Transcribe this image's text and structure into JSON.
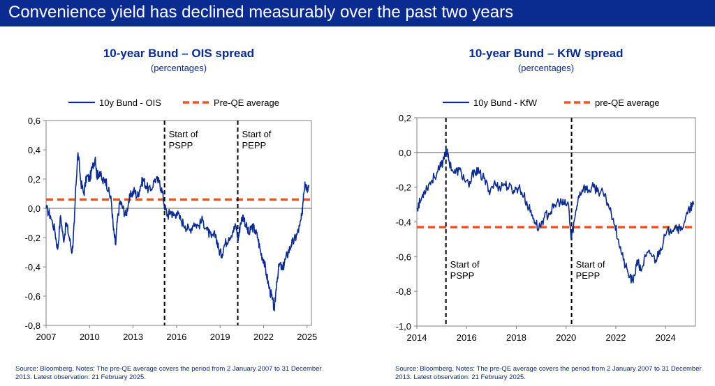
{
  "banner": {
    "title": "Convenience yield has declined measurably over the past two years",
    "background": "#0a2b8f",
    "text_color": "#ffffff"
  },
  "colors": {
    "series": "#0a2b8f",
    "average": "#f0551e",
    "event_line": "#000000",
    "titles": "#0a2b8f",
    "text": "#000000"
  },
  "chart_data": [
    {
      "type": "line",
      "title": "10-year Bund – OIS spread",
      "subtitle": "(percentages)",
      "xlabel": "",
      "ylabel": "",
      "xlim": [
        2007,
        2025.3
      ],
      "ylim": [
        -0.8,
        0.6
      ],
      "x_ticks": [
        2007,
        2010,
        2013,
        2016,
        2019,
        2022,
        2025
      ],
      "y_ticks": [
        -0.8,
        -0.6,
        -0.4,
        -0.2,
        0.0,
        0.2,
        0.4,
        0.6
      ],
      "y_tick_labels": [
        "-0,8",
        "-0,6",
        "-0,4",
        "-0,2",
        "0,0",
        "0,2",
        "0,4",
        "0,6"
      ],
      "grid": false,
      "legend_position": "top",
      "series": [
        {
          "name": "10y Bund - OIS",
          "style": "solid",
          "points": [
            [
              2007.0,
              0.0
            ],
            [
              2007.3,
              -0.05
            ],
            [
              2007.6,
              -0.15
            ],
            [
              2007.8,
              -0.28
            ],
            [
              2008.0,
              -0.05
            ],
            [
              2008.2,
              -0.22
            ],
            [
              2008.4,
              -0.1
            ],
            [
              2008.6,
              -0.2
            ],
            [
              2008.8,
              -0.3
            ],
            [
              2008.95,
              -0.1
            ],
            [
              2009.05,
              0.15
            ],
            [
              2009.2,
              0.38
            ],
            [
              2009.4,
              0.18
            ],
            [
              2009.6,
              0.1
            ],
            [
              2009.8,
              0.22
            ],
            [
              2010.0,
              0.2
            ],
            [
              2010.2,
              0.28
            ],
            [
              2010.4,
              0.35
            ],
            [
              2010.5,
              0.22
            ],
            [
              2010.7,
              0.25
            ],
            [
              2010.9,
              0.18
            ],
            [
              2011.1,
              0.2
            ],
            [
              2011.3,
              0.12
            ],
            [
              2011.5,
              0.05
            ],
            [
              2011.65,
              -0.15
            ],
            [
              2011.8,
              -0.25
            ],
            [
              2011.9,
              -0.1
            ],
            [
              2012.1,
              0.05
            ],
            [
              2012.3,
              0.0
            ],
            [
              2012.5,
              -0.05
            ],
            [
              2012.7,
              0.05
            ],
            [
              2012.9,
              0.1
            ],
            [
              2013.1,
              0.12
            ],
            [
              2013.3,
              0.08
            ],
            [
              2013.5,
              0.15
            ],
            [
              2013.7,
              0.2
            ],
            [
              2013.9,
              0.15
            ],
            [
              2014.2,
              0.12
            ],
            [
              2014.5,
              0.2
            ],
            [
              2014.8,
              0.18
            ],
            [
              2015.0,
              0.12
            ],
            [
              2015.2,
              0.0
            ],
            [
              2015.4,
              -0.05
            ],
            [
              2015.6,
              -0.02
            ],
            [
              2015.8,
              -0.05
            ],
            [
              2016.0,
              -0.03
            ],
            [
              2016.3,
              -0.08
            ],
            [
              2016.6,
              -0.12
            ],
            [
              2016.9,
              -0.15
            ],
            [
              2017.2,
              -0.1
            ],
            [
              2017.5,
              -0.12
            ],
            [
              2017.8,
              -0.08
            ],
            [
              2018.1,
              -0.15
            ],
            [
              2018.4,
              -0.2
            ],
            [
              2018.7,
              -0.18
            ],
            [
              2018.9,
              -0.28
            ],
            [
              2019.1,
              -0.32
            ],
            [
              2019.3,
              -0.25
            ],
            [
              2019.6,
              -0.2
            ],
            [
              2019.9,
              -0.15
            ],
            [
              2020.1,
              -0.12
            ],
            [
              2020.25,
              -0.22
            ],
            [
              2020.4,
              -0.1
            ],
            [
              2020.6,
              -0.05
            ],
            [
              2020.8,
              -0.12
            ],
            [
              2021.0,
              -0.18
            ],
            [
              2021.2,
              -0.12
            ],
            [
              2021.4,
              -0.15
            ],
            [
              2021.6,
              -0.2
            ],
            [
              2021.8,
              -0.3
            ],
            [
              2022.0,
              -0.35
            ],
            [
              2022.2,
              -0.45
            ],
            [
              2022.4,
              -0.55
            ],
            [
              2022.6,
              -0.62
            ],
            [
              2022.75,
              -0.7
            ],
            [
              2022.9,
              -0.5
            ],
            [
              2023.1,
              -0.38
            ],
            [
              2023.3,
              -0.42
            ],
            [
              2023.5,
              -0.35
            ],
            [
              2023.7,
              -0.3
            ],
            [
              2023.9,
              -0.25
            ],
            [
              2024.1,
              -0.22
            ],
            [
              2024.3,
              -0.18
            ],
            [
              2024.5,
              -0.12
            ],
            [
              2024.65,
              -0.05
            ],
            [
              2024.75,
              0.1
            ],
            [
              2024.85,
              0.18
            ],
            [
              2025.0,
              0.14
            ],
            [
              2025.13,
              0.16
            ]
          ]
        },
        {
          "name": "Pre-QE average",
          "style": "dashed",
          "value": 0.06
        }
      ],
      "annotations": [
        {
          "x": 2015.17,
          "label": "Start of\nPSPP"
        },
        {
          "x": 2020.22,
          "label": "Start of\nPEPP"
        }
      ],
      "source": "Source: Bloomberg. Notes: The pre-QE average covers the period from 2 January 2007 to 31 December 2013. Latest observation: 21 February 2025."
    },
    {
      "type": "line",
      "title": "10-year Bund – KfW spread",
      "subtitle": "(percentages)",
      "xlabel": "",
      "ylabel": "",
      "xlim": [
        2014,
        2025.2
      ],
      "ylim": [
        -1.0,
        0.2
      ],
      "x_ticks": [
        2014,
        2016,
        2018,
        2020,
        2022,
        2024
      ],
      "y_ticks": [
        -1.0,
        -0.8,
        -0.6,
        -0.4,
        -0.2,
        0.0,
        0.2
      ],
      "y_tick_labels": [
        "-1,0",
        "-0,8",
        "-0,6",
        "-0,4",
        "-0,2",
        "0,0",
        "0,2"
      ],
      "grid": false,
      "legend_position": "top",
      "series": [
        {
          "name": "10y Bund - KfW",
          "style": "solid",
          "points": [
            [
              2014.0,
              -0.32
            ],
            [
              2014.15,
              -0.28
            ],
            [
              2014.3,
              -0.22
            ],
            [
              2014.5,
              -0.18
            ],
            [
              2014.7,
              -0.14
            ],
            [
              2014.9,
              -0.1
            ],
            [
              2015.05,
              -0.05
            ],
            [
              2015.17,
              0.02
            ],
            [
              2015.3,
              -0.05
            ],
            [
              2015.5,
              -0.12
            ],
            [
              2015.7,
              -0.1
            ],
            [
              2015.9,
              -0.15
            ],
            [
              2016.1,
              -0.2
            ],
            [
              2016.3,
              -0.1
            ],
            [
              2016.5,
              -0.12
            ],
            [
              2016.7,
              -0.15
            ],
            [
              2016.9,
              -0.22
            ],
            [
              2017.1,
              -0.18
            ],
            [
              2017.3,
              -0.2
            ],
            [
              2017.5,
              -0.18
            ],
            [
              2017.7,
              -0.2
            ],
            [
              2017.9,
              -0.22
            ],
            [
              2018.1,
              -0.2
            ],
            [
              2018.3,
              -0.25
            ],
            [
              2018.5,
              -0.32
            ],
            [
              2018.7,
              -0.38
            ],
            [
              2018.9,
              -0.44
            ],
            [
              2019.1,
              -0.38
            ],
            [
              2019.3,
              -0.35
            ],
            [
              2019.5,
              -0.32
            ],
            [
              2019.7,
              -0.28
            ],
            [
              2019.9,
              -0.3
            ],
            [
              2020.1,
              -0.3
            ],
            [
              2020.2,
              -0.5
            ],
            [
              2020.35,
              -0.38
            ],
            [
              2020.5,
              -0.25
            ],
            [
              2020.7,
              -0.2
            ],
            [
              2020.9,
              -0.22
            ],
            [
              2021.1,
              -0.2
            ],
            [
              2021.3,
              -0.22
            ],
            [
              2021.5,
              -0.24
            ],
            [
              2021.7,
              -0.3
            ],
            [
              2021.9,
              -0.38
            ],
            [
              2022.1,
              -0.5
            ],
            [
              2022.3,
              -0.62
            ],
            [
              2022.5,
              -0.7
            ],
            [
              2022.7,
              -0.75
            ],
            [
              2022.85,
              -0.62
            ],
            [
              2023.0,
              -0.68
            ],
            [
              2023.2,
              -0.6
            ],
            [
              2023.4,
              -0.58
            ],
            [
              2023.6,
              -0.62
            ],
            [
              2023.8,
              -0.55
            ],
            [
              2024.0,
              -0.48
            ],
            [
              2024.2,
              -0.44
            ],
            [
              2024.4,
              -0.42
            ],
            [
              2024.6,
              -0.45
            ],
            [
              2024.8,
              -0.38
            ],
            [
              2025.0,
              -0.32
            ],
            [
              2025.13,
              -0.3
            ]
          ]
        },
        {
          "name": "pre-QE average",
          "style": "dashed",
          "value": -0.43
        }
      ],
      "annotations": [
        {
          "x": 2015.17,
          "label": "Start of\nPSPP"
        },
        {
          "x": 2020.22,
          "label": "Start of\nPEPP"
        }
      ],
      "source": "Source: Bloomberg. Notes: The pre-QE average covers the period from 2 January 2007 to 31 December 2013. Latest observation: 21 February 2025."
    }
  ]
}
